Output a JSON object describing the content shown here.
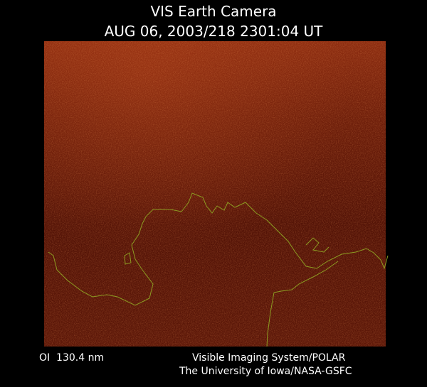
{
  "header": {
    "title": "VIS Earth Camera",
    "subtitle": "AUG 06, 2003/218 2301:04 UT"
  },
  "footer": {
    "filter": "OI  130.4 nm",
    "instrument": "Visible Imaging System/POLAR",
    "credit": "The University of Iowa/NASA-GSFC"
  }
}
